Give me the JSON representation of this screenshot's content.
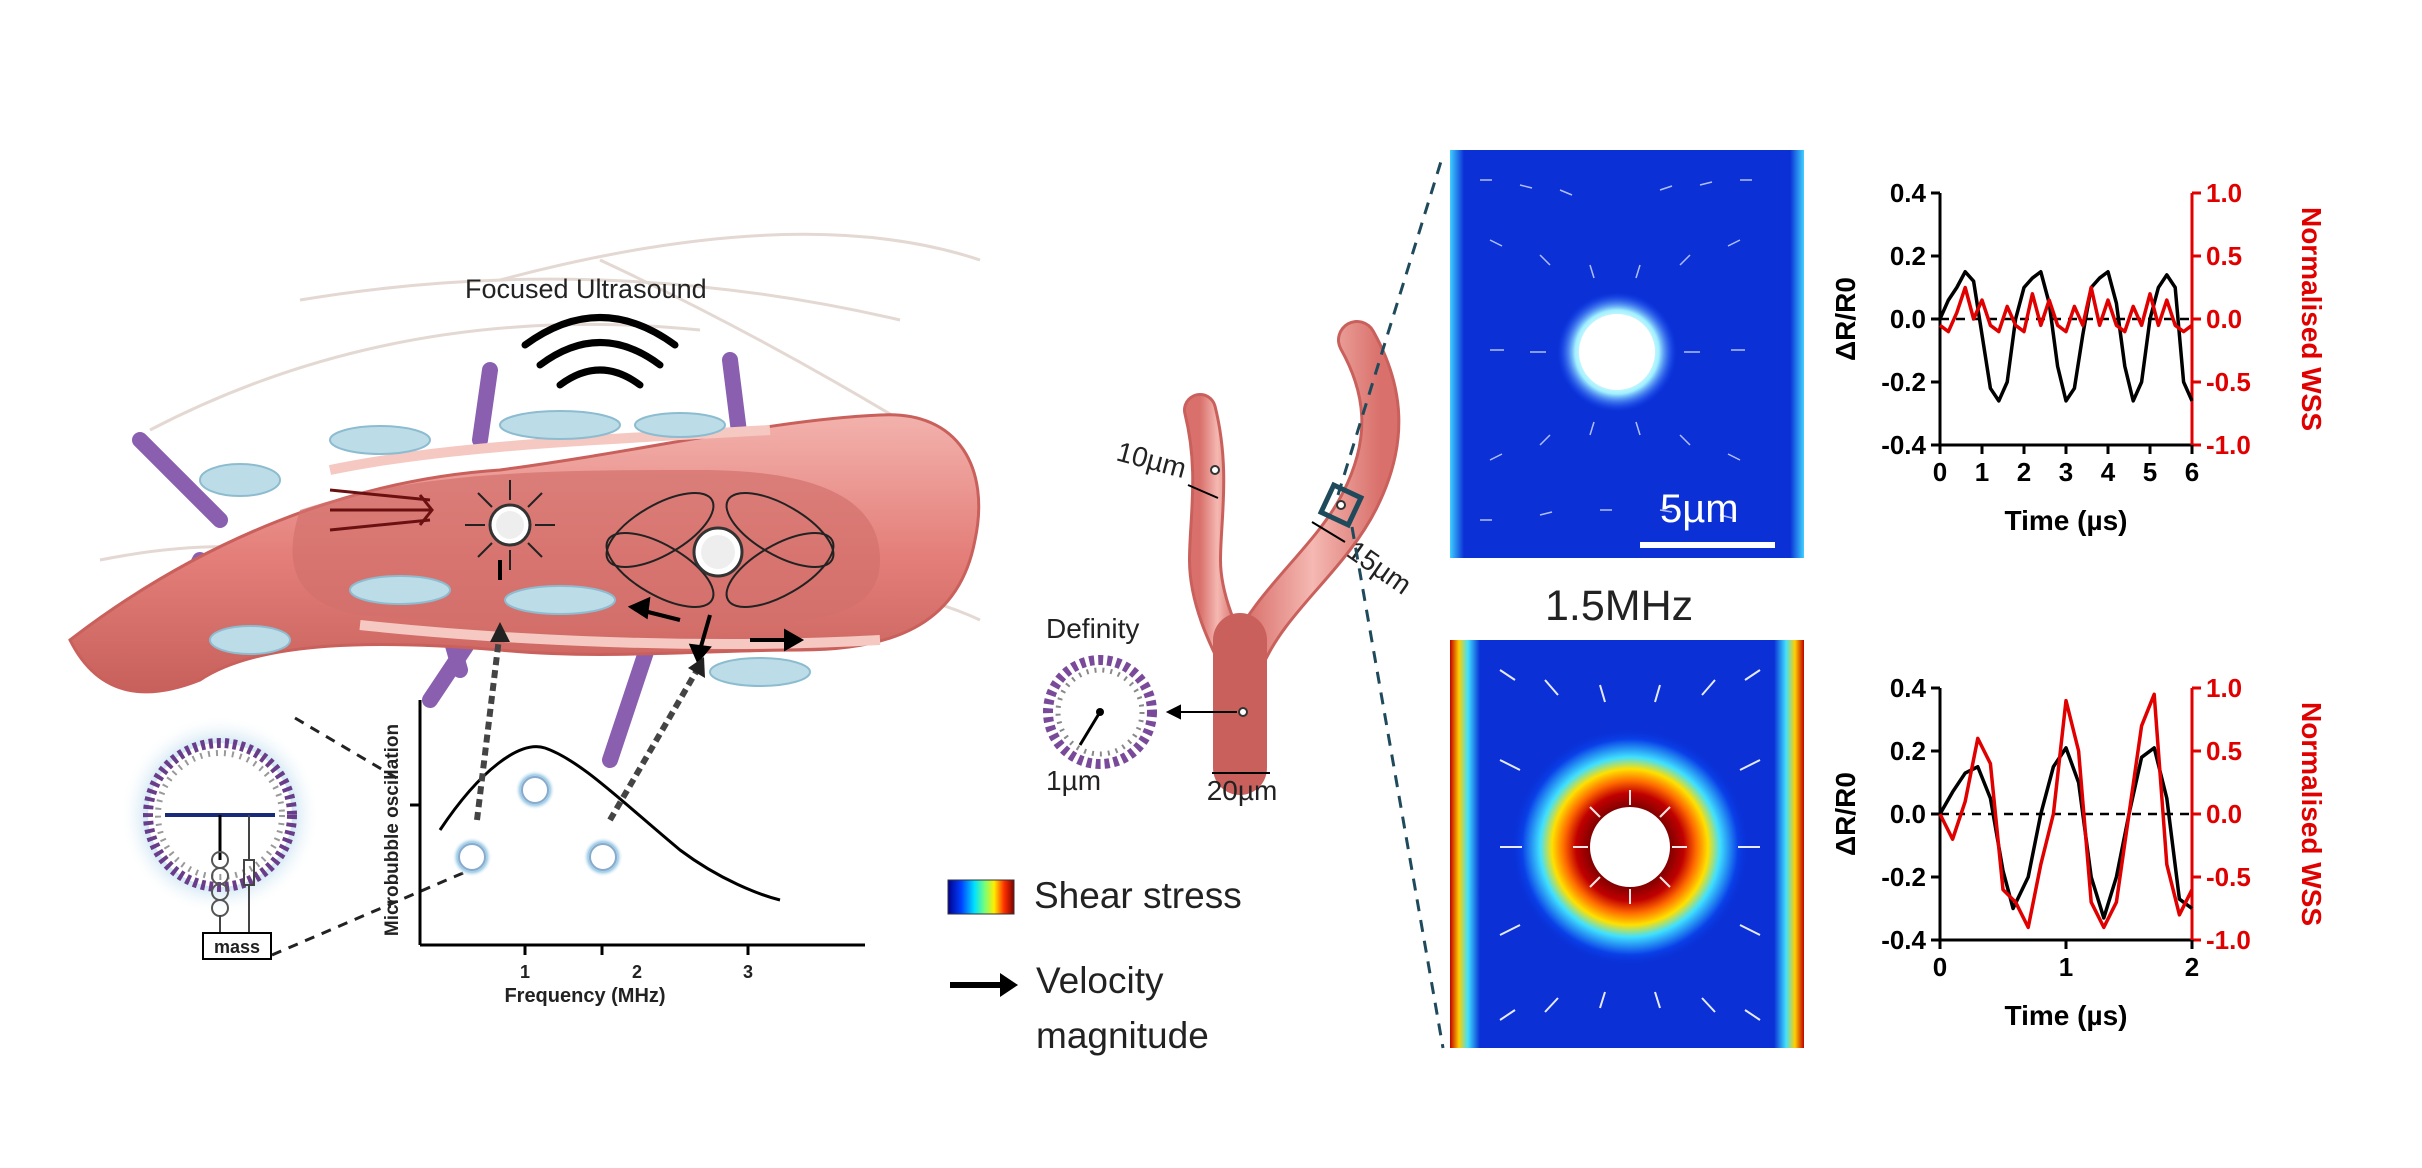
{
  "left_panel": {
    "ultrasound_label": "Focused Ultrasound",
    "mass_label": "mass",
    "plot": {
      "ylabel": "Microbubble oscillation",
      "xlabel": "Frequency (MHz)",
      "xticks": [
        "1",
        "2",
        "3"
      ]
    }
  },
  "vessel": {
    "branch_left": "10µm",
    "branch_right": "15µm",
    "trunk": "20µm",
    "bubble_name": "Definity",
    "bubble_size": "1µm"
  },
  "legend": {
    "shear": "Shear stress",
    "velocity_line1": "Velocity",
    "velocity_line2": "magnitude"
  },
  "colors": {
    "vessel_fill": "#e8908c",
    "vessel_dark": "#c9605c",
    "lipid_purple": "#7a4a9a",
    "field_blue": "#0a2fd6",
    "wss_red": "#e00000",
    "ratio_black": "#000000"
  },
  "sim": {
    "scale_bar": "5µm",
    "frequency": "1.5MHz"
  },
  "chart_data": [
    {
      "type": "line",
      "xlabel": "Time (µs)",
      "ylabel": "ΔR/R0",
      "ylabel_right": "Normalised WSS",
      "xlim": [
        0,
        6
      ],
      "ylim": [
        -0.4,
        0.4
      ],
      "ylim_right": [
        -1.0,
        1.0
      ],
      "xticks": [
        "0",
        "1",
        "2",
        "3",
        "4",
        "5",
        "6"
      ],
      "yticks": [
        "0.4",
        "0.2",
        "0.0",
        "-0.2",
        "-0.4"
      ],
      "yticks_right": [
        "1.0",
        "0.5",
        "0.0",
        "-0.5",
        "-1.0"
      ],
      "series": [
        {
          "axis": "left",
          "color": "#000000",
          "x": [
            0,
            0.2,
            0.4,
            0.6,
            0.8,
            1.0,
            1.2,
            1.4,
            1.6,
            1.8,
            2.0,
            2.2,
            2.4,
            2.6,
            2.8,
            3.0,
            3.2,
            3.4,
            3.6,
            3.8,
            4.0,
            4.2,
            4.4,
            4.6,
            4.8,
            5.0,
            5.2,
            5.4,
            5.6,
            5.8,
            6.0
          ],
          "y": [
            0.0,
            0.06,
            0.1,
            0.15,
            0.12,
            -0.05,
            -0.22,
            -0.26,
            -0.2,
            0.0,
            0.1,
            0.13,
            0.15,
            0.05,
            -0.15,
            -0.26,
            -0.22,
            -0.05,
            0.1,
            0.13,
            0.15,
            0.05,
            -0.15,
            -0.26,
            -0.2,
            0.0,
            0.1,
            0.14,
            0.1,
            -0.2,
            -0.26
          ]
        },
        {
          "axis": "right",
          "color": "#e00000",
          "x": [
            0,
            0.2,
            0.4,
            0.6,
            0.8,
            1.0,
            1.2,
            1.4,
            1.6,
            1.8,
            2.0,
            2.2,
            2.4,
            2.6,
            2.8,
            3.0,
            3.2,
            3.4,
            3.6,
            3.8,
            4.0,
            4.2,
            4.4,
            4.6,
            4.8,
            5.0,
            5.2,
            5.4,
            5.6,
            5.8,
            6.0
          ],
          "y": [
            -0.05,
            -0.1,
            0.05,
            0.25,
            0.0,
            0.15,
            -0.05,
            -0.1,
            0.1,
            -0.05,
            -0.1,
            0.2,
            -0.05,
            0.15,
            -0.05,
            -0.1,
            0.1,
            -0.05,
            0.25,
            -0.05,
            0.15,
            -0.05,
            -0.1,
            0.1,
            -0.05,
            0.2,
            -0.05,
            0.15,
            -0.05,
            -0.1,
            -0.05
          ]
        }
      ]
    },
    {
      "type": "line",
      "xlabel": "Time (µs)",
      "ylabel": "ΔR/R0",
      "ylabel_right": "Normalised WSS",
      "xlim": [
        0,
        2
      ],
      "ylim": [
        -0.4,
        0.4
      ],
      "ylim_right": [
        -1.0,
        1.0
      ],
      "xticks": [
        "0",
        "1",
        "2"
      ],
      "yticks": [
        "0.4",
        "0.2",
        "0.0",
        "-0.2",
        "-0.4"
      ],
      "yticks_right": [
        "1.0",
        "0.5",
        "0.0",
        "-0.5",
        "-1.0"
      ],
      "series": [
        {
          "axis": "left",
          "color": "#000000",
          "x": [
            0,
            0.1,
            0.2,
            0.3,
            0.4,
            0.5,
            0.58,
            0.7,
            0.8,
            0.9,
            1.0,
            1.1,
            1.2,
            1.3,
            1.4,
            1.5,
            1.6,
            1.7,
            1.8,
            1.9,
            2.0
          ],
          "y": [
            0.0,
            0.07,
            0.13,
            0.15,
            0.05,
            -0.18,
            -0.3,
            -0.2,
            0.0,
            0.15,
            0.21,
            0.1,
            -0.2,
            -0.33,
            -0.2,
            0.0,
            0.18,
            0.21,
            0.05,
            -0.27,
            -0.3
          ]
        },
        {
          "axis": "right",
          "color": "#e00000",
          "x": [
            0,
            0.1,
            0.2,
            0.3,
            0.4,
            0.5,
            0.6,
            0.7,
            0.8,
            0.9,
            1.0,
            1.1,
            1.2,
            1.3,
            1.4,
            1.5,
            1.6,
            1.7,
            1.8,
            1.9,
            2.0
          ],
          "y": [
            0.0,
            -0.2,
            0.1,
            0.6,
            0.4,
            -0.6,
            -0.7,
            -0.9,
            -0.4,
            0.0,
            0.9,
            0.5,
            -0.7,
            -0.9,
            -0.7,
            0.0,
            0.7,
            0.95,
            -0.4,
            -0.8,
            -0.6
          ]
        }
      ]
    }
  ]
}
